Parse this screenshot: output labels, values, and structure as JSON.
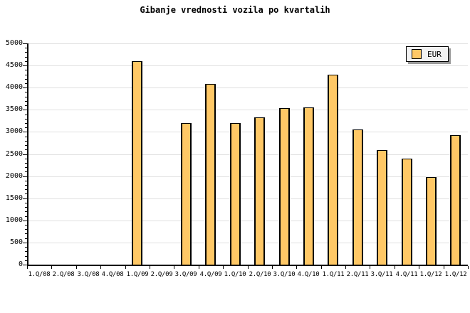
{
  "title": "Gibanje vrednosti vozila po kvartalih",
  "legend": {
    "label": "EUR"
  },
  "colors": {
    "background": "#ffffff",
    "bar_fill": "#ffc866",
    "bar_border": "#000000",
    "gridline": "#e0e0e0",
    "axis": "#000000",
    "text": "#000000",
    "legend_background": "#f2f2f2",
    "legend_border": "#000000",
    "legend_shadow": "#999999"
  },
  "chart_data": {
    "type": "bar",
    "title": "Gibanje vrednosti vozila po kvartalih",
    "series_name": "EUR",
    "categories": [
      "1.Q/08",
      "2.Q/08",
      "3.Q/08",
      "4.Q/08",
      "1.Q/09",
      "2.Q/09",
      "3.Q/09",
      "4.Q/09",
      "1.Q/10",
      "2.Q/10",
      "3.Q/10",
      "4.Q/10",
      "1.Q/11",
      "2.Q/11",
      "3.Q/11",
      "4.Q/11",
      "1.Q/12",
      "1.Q/12"
    ],
    "values": [
      null,
      null,
      null,
      null,
      4600,
      null,
      3200,
      4080,
      3200,
      3330,
      3540,
      3550,
      4290,
      3060,
      2590,
      2400,
      1970,
      2920
    ],
    "ylim": [
      0,
      5000
    ],
    "ytick_step": 500,
    "ytick_minor_step": 100,
    "ytick_labels": [
      "0",
      "500",
      "1000",
      "1500",
      "2000",
      "2500",
      "3000",
      "3500",
      "4000",
      "4500",
      "5000"
    ],
    "grid": "horizontal",
    "legend_position": "top-right"
  }
}
